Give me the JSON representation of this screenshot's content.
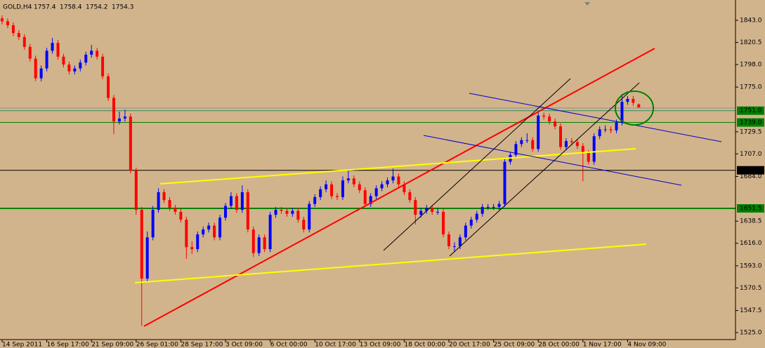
{
  "chart_data": {
    "type": "candlestick",
    "title": "GOLD,H4",
    "ohlc": [
      1757.4,
      1758.4,
      1754.2,
      1754.3
    ],
    "up_color": "#0000ff",
    "down_color": "#ff0000",
    "background": "#d2b48c",
    "ylim": [
      1517.9,
      1863.7
    ],
    "yticks": [
      {
        "value": 1843,
        "label": "1843.0"
      },
      {
        "value": 1820.5,
        "label": "1820.5"
      },
      {
        "value": 1798,
        "label": "1798.0"
      },
      {
        "value": 1775,
        "label": "1775.0"
      },
      {
        "value": 1729.5,
        "label": "1729.5"
      },
      {
        "value": 1707,
        "label": "1707.0"
      },
      {
        "value": 1684,
        "label": "1684.0"
      },
      {
        "value": 1638.5,
        "label": "1638.5"
      },
      {
        "value": 1616,
        "label": "1616.0"
      },
      {
        "value": 1593,
        "label": "1593.0"
      },
      {
        "value": 1570.5,
        "label": "1570.5"
      },
      {
        "value": 1547.5,
        "label": "1547.5"
      },
      {
        "value": 1525,
        "label": "1525.0"
      }
    ],
    "levels": [
      {
        "value": 1751,
        "label": "1751.0",
        "color": "#2e8b57",
        "label_color": "#008000",
        "width": 1
      },
      {
        "value": 1739,
        "label": "1739.0",
        "color": "#008000",
        "label_color": "#008000",
        "width": 1
      },
      {
        "value": 1690.3,
        "label": "1690.3",
        "color": "#000000",
        "label_color": "#000000",
        "width": 1
      },
      {
        "value": 1651.5,
        "label": "1651.5",
        "color": "#008000",
        "label_color": "#008000",
        "width": 2
      }
    ],
    "categories": [
      "14 Sep 2011",
      null,
      null,
      null,
      null,
      null,
      null,
      null,
      "16 Sep 17:00",
      null,
      null,
      null,
      null,
      null,
      null,
      null,
      "21 Sep 09:00",
      null,
      null,
      null,
      null,
      null,
      null,
      null,
      "26 Sep 01:00",
      null,
      null,
      null,
      null,
      null,
      null,
      null,
      "28 Sep 17:00",
      null,
      null,
      null,
      null,
      null,
      null,
      null,
      "3 Oct 09:00",
      null,
      null,
      null,
      null,
      null,
      null,
      null,
      "6 Oct 00:00",
      null,
      null,
      null,
      null,
      null,
      null,
      null,
      "10 Oct 17:00",
      null,
      null,
      null,
      null,
      null,
      null,
      null,
      "13 Oct 09:00",
      null,
      null,
      null,
      null,
      null,
      null,
      null,
      "18 Oct 00:00",
      null,
      null,
      null,
      null,
      null,
      null,
      null,
      "20 Oct 17:00",
      null,
      null,
      null,
      null,
      null,
      null,
      null,
      "25 Oct 09:00",
      null,
      null,
      null,
      null,
      null,
      null,
      null,
      "28 Oct 00:00",
      null,
      null,
      null,
      null,
      null,
      null,
      null,
      "1 Nov 17:00",
      null,
      null,
      null,
      null,
      null,
      null,
      null,
      "4 Nov 09:00",
      null,
      null
    ],
    "open": [
      1845,
      1842,
      1838,
      1830,
      1826,
      1816,
      1804,
      1784,
      1794,
      1812,
      1820,
      1806,
      1798,
      1791,
      1794,
      1800,
      1808,
      1812,
      1806,
      1786,
      1764,
      1740,
      1743,
      1745,
      1690,
      1650,
      1580,
      1622,
      1650,
      1668,
      1660,
      1652,
      1648,
      1640,
      1612,
      1610,
      1625,
      1630,
      1634,
      1622,
      1642,
      1654,
      1664,
      1650,
      1668,
      1630,
      1606,
      1622,
      1610,
      1645,
      1650,
      1649,
      1646,
      1649,
      1640,
      1630,
      1656,
      1663,
      1671,
      1676,
      1664,
      1663,
      1680,
      1682,
      1676,
      1670,
      1656,
      1664,
      1672,
      1676,
      1680,
      1684,
      1676,
      1668,
      1660,
      1645,
      1649,
      1652,
      1648,
      1648,
      1625,
      1613,
      1613,
      1622,
      1634,
      1640,
      1646,
      1653,
      1653,
      1653,
      1656,
      1699,
      1706,
      1717,
      1721,
      1721,
      1712,
      1746,
      1745,
      1740,
      1735,
      1714,
      1720,
      1719,
      1715,
      1708,
      1699,
      1725,
      1732,
      1732,
      1731,
      1739,
      1760,
      1763,
      1757.4
    ],
    "high": [
      1848,
      1845,
      1841,
      1833,
      1829,
      1819,
      1807,
      1797,
      1815,
      1825,
      1823,
      1809,
      1801,
      1797,
      1803,
      1811,
      1818,
      1815,
      1809,
      1789,
      1767,
      1750,
      1752,
      1748,
      1693,
      1653,
      1628,
      1654,
      1672,
      1671,
      1663,
      1655,
      1651,
      1643,
      1618,
      1628,
      1633,
      1637,
      1637,
      1645,
      1657,
      1668,
      1667,
      1675,
      1671,
      1633,
      1625,
      1625,
      1648,
      1653,
      1653,
      1652,
      1652,
      1652,
      1643,
      1659,
      1666,
      1674,
      1680,
      1679,
      1667,
      1684,
      1690,
      1685,
      1679,
      1673,
      1667,
      1675,
      1679,
      1683,
      1692,
      1687,
      1679,
      1671,
      1663,
      1652,
      1655,
      1655,
      1652,
      1651,
      1628,
      1617,
      1625,
      1637,
      1643,
      1649,
      1656,
      1656,
      1656,
      1659,
      1702,
      1709,
      1720,
      1724,
      1728,
      1724,
      1749,
      1749,
      1748,
      1743,
      1738,
      1723,
      1723,
      1722,
      1718,
      1711,
      1728,
      1735,
      1736,
      1735,
      1742,
      1768,
      1766,
      1766,
      1758.4
    ],
    "low": [
      1839,
      1835,
      1827,
      1823,
      1813,
      1801,
      1781,
      1781,
      1791,
      1809,
      1803,
      1795,
      1788,
      1788,
      1791,
      1797,
      1805,
      1803,
      1783,
      1761,
      1727,
      1737,
      1740,
      1687,
      1645,
      1532,
      1577,
      1619,
      1647,
      1657,
      1649,
      1645,
      1637,
      1600,
      1605,
      1607,
      1622,
      1627,
      1619,
      1619,
      1639,
      1651,
      1647,
      1647,
      1627,
      1602,
      1603,
      1607,
      1607,
      1642,
      1646,
      1643,
      1643,
      1637,
      1627,
      1627,
      1653,
      1660,
      1668,
      1661,
      1660,
      1660,
      1677,
      1673,
      1667,
      1653,
      1653,
      1661,
      1669,
      1673,
      1677,
      1673,
      1665,
      1657,
      1635,
      1642,
      1646,
      1645,
      1645,
      1622,
      1610,
      1607,
      1610,
      1619,
      1631,
      1637,
      1643,
      1650,
      1650,
      1650,
      1653,
      1696,
      1703,
      1714,
      1718,
      1709,
      1709,
      1742,
      1737,
      1732,
      1711,
      1711,
      1716,
      1712,
      1679,
      1696,
      1696,
      1722,
      1729,
      1728,
      1728,
      1736,
      1757,
      1756,
      1754.2
    ],
    "close": [
      1842,
      1838,
      1830,
      1826,
      1816,
      1804,
      1784,
      1794,
      1812,
      1820,
      1806,
      1798,
      1791,
      1794,
      1800,
      1808,
      1812,
      1806,
      1786,
      1764,
      1740,
      1743,
      1745,
      1690,
      1650,
      1580,
      1622,
      1650,
      1668,
      1660,
      1652,
      1648,
      1640,
      1612,
      1610,
      1625,
      1630,
      1634,
      1622,
      1642,
      1654,
      1664,
      1650,
      1668,
      1630,
      1606,
      1622,
      1610,
      1645,
      1650,
      1649,
      1646,
      1649,
      1640,
      1630,
      1656,
      1663,
      1671,
      1676,
      1664,
      1663,
      1680,
      1682,
      1676,
      1670,
      1656,
      1664,
      1672,
      1676,
      1680,
      1684,
      1676,
      1668,
      1660,
      1645,
      1649,
      1652,
      1648,
      1648,
      1625,
      1613,
      1613,
      1622,
      1634,
      1640,
      1646,
      1653,
      1653,
      1653,
      1656,
      1699,
      1706,
      1717,
      1721,
      1721,
      1712,
      1746,
      1745,
      1740,
      1735,
      1714,
      1720,
      1719,
      1715,
      1708,
      1699,
      1725,
      1732,
      1732,
      1731,
      1739,
      1760,
      1763,
      1759,
      1754.3
    ]
  }
}
